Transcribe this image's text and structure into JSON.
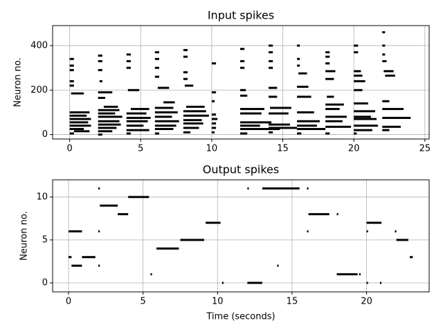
{
  "chart_data": [
    {
      "type": "raster",
      "title": "Input spikes",
      "y_label": "Neuron no.",
      "color": "#000000",
      "grid": true,
      "xlim": [
        -1.2,
        25.3
      ],
      "ylim": [
        -20,
        490
      ],
      "xticks": [
        0,
        5,
        10,
        15,
        20,
        25
      ],
      "yticks": [
        0,
        200,
        400
      ],
      "runs": [
        [
          0,
          0.3,
          340
        ],
        [
          0,
          0.3,
          310
        ],
        [
          0,
          0.3,
          290
        ],
        [
          0,
          0.3,
          240
        ],
        [
          0,
          0.3,
          220
        ],
        [
          0.1,
          1.0,
          185
        ],
        [
          0,
          1.4,
          100
        ],
        [
          0,
          1.2,
          85
        ],
        [
          0,
          1.5,
          70
        ],
        [
          0,
          1.3,
          55
        ],
        [
          0,
          1.5,
          40
        ],
        [
          0,
          1.0,
          25
        ],
        [
          0.3,
          1.4,
          15
        ],
        [
          0,
          0.3,
          5
        ],
        [
          2,
          2.3,
          355
        ],
        [
          2,
          2.3,
          330
        ],
        [
          2,
          2.3,
          290
        ],
        [
          2.1,
          2.3,
          240
        ],
        [
          2,
          3,
          190
        ],
        [
          2,
          2.5,
          165
        ],
        [
          2.4,
          3.4,
          125
        ],
        [
          2,
          3.5,
          110
        ],
        [
          2,
          3.2,
          95
        ],
        [
          2,
          3.7,
          80
        ],
        [
          2,
          3.5,
          60
        ],
        [
          2,
          3.6,
          45
        ],
        [
          2,
          3.3,
          30
        ],
        [
          2,
          3.0,
          15
        ],
        [
          2,
          2.3,
          0
        ],
        [
          4,
          4.3,
          360
        ],
        [
          4,
          4.3,
          330
        ],
        [
          4,
          4.3,
          300
        ],
        [
          4.1,
          4.9,
          200
        ],
        [
          4.3,
          5.6,
          115
        ],
        [
          4,
          5.4,
          95
        ],
        [
          4,
          5.7,
          75
        ],
        [
          4,
          5.5,
          60
        ],
        [
          4,
          5.2,
          40
        ],
        [
          4,
          5.6,
          20
        ],
        [
          4,
          4.3,
          5
        ],
        [
          6,
          6.3,
          370
        ],
        [
          6,
          6.3,
          340
        ],
        [
          6,
          6.3,
          300
        ],
        [
          6,
          6.3,
          260
        ],
        [
          6.2,
          7.0,
          210
        ],
        [
          6.6,
          7.4,
          145
        ],
        [
          6,
          7.3,
          120
        ],
        [
          6,
          7.6,
          100
        ],
        [
          6,
          7.2,
          80
        ],
        [
          6,
          7.7,
          60
        ],
        [
          6,
          7.5,
          40
        ],
        [
          6,
          7.3,
          25
        ],
        [
          6,
          6.3,
          5
        ],
        [
          8,
          8.3,
          380
        ],
        [
          8,
          8.3,
          350
        ],
        [
          8,
          8.3,
          280
        ],
        [
          8,
          8.3,
          250
        ],
        [
          8.1,
          8.7,
          220
        ],
        [
          8.2,
          9.5,
          125
        ],
        [
          8,
          9.6,
          105
        ],
        [
          8,
          9.8,
          85
        ],
        [
          8,
          9.3,
          65
        ],
        [
          8,
          9.4,
          50
        ],
        [
          8,
          9.1,
          30
        ],
        [
          8,
          8.5,
          10
        ],
        [
          10,
          10.3,
          320
        ],
        [
          10,
          10.3,
          190
        ],
        [
          10,
          10.2,
          150
        ],
        [
          10,
          10.3,
          90
        ],
        [
          10,
          10.4,
          70
        ],
        [
          10,
          10.3,
          50
        ],
        [
          10,
          10.3,
          30
        ],
        [
          10,
          10.2,
          10
        ],
        [
          12,
          12.3,
          385
        ],
        [
          12,
          12.3,
          330
        ],
        [
          12,
          12.3,
          300
        ],
        [
          12,
          12.4,
          200
        ],
        [
          12,
          12.5,
          175
        ],
        [
          12,
          13.7,
          115
        ],
        [
          12,
          13.5,
          95
        ],
        [
          12,
          14.2,
          55
        ],
        [
          12,
          13.4,
          40
        ],
        [
          12,
          14.8,
          25
        ],
        [
          12,
          12.5,
          5
        ],
        [
          14,
          14.3,
          400
        ],
        [
          14,
          14.3,
          370
        ],
        [
          14,
          14.3,
          330
        ],
        [
          14,
          14.3,
          300
        ],
        [
          14,
          14.6,
          210
        ],
        [
          14,
          14.6,
          170
        ],
        [
          14.1,
          15.6,
          120
        ],
        [
          14,
          15.4,
          95
        ],
        [
          14,
          16.0,
          30
        ],
        [
          14,
          15.5,
          45
        ],
        [
          14,
          14.3,
          10
        ],
        [
          16,
          16.2,
          400
        ],
        [
          16,
          16.2,
          340
        ],
        [
          16,
          16.2,
          310
        ],
        [
          16.1,
          16.7,
          275
        ],
        [
          16,
          16.8,
          215
        ],
        [
          16,
          17.0,
          170
        ],
        [
          16,
          17.2,
          100
        ],
        [
          16,
          17.6,
          60
        ],
        [
          16,
          17.4,
          40
        ],
        [
          16,
          18,
          25
        ],
        [
          16,
          16.3,
          5
        ],
        [
          18,
          18.3,
          370
        ],
        [
          18,
          18.3,
          350
        ],
        [
          18,
          18.3,
          320
        ],
        [
          18,
          18.7,
          285
        ],
        [
          18,
          18.6,
          250
        ],
        [
          18.1,
          18.6,
          170
        ],
        [
          18,
          19.3,
          135
        ],
        [
          18,
          19.0,
          115
        ],
        [
          18,
          19.5,
          80
        ],
        [
          18,
          19.2,
          60
        ],
        [
          18,
          19.8,
          35
        ],
        [
          18,
          18.3,
          5
        ],
        [
          20,
          20.3,
          400
        ],
        [
          20,
          20.3,
          370
        ],
        [
          20,
          20.5,
          285
        ],
        [
          20,
          20.6,
          265
        ],
        [
          20,
          20.8,
          240
        ],
        [
          20,
          20.6,
          200
        ],
        [
          20,
          21.0,
          140
        ],
        [
          20,
          21.5,
          105
        ],
        [
          20,
          21.2,
          80
        ],
        [
          20,
          21.6,
          70
        ],
        [
          20,
          21.7,
          40
        ],
        [
          20,
          21.3,
          20
        ],
        [
          20,
          20.2,
          5
        ],
        [
          22,
          22.2,
          460
        ],
        [
          22,
          22.2,
          400
        ],
        [
          22,
          22.2,
          360
        ],
        [
          22,
          22.3,
          330
        ],
        [
          22.1,
          22.8,
          285
        ],
        [
          22.2,
          22.9,
          265
        ],
        [
          22,
          22.5,
          150
        ],
        [
          22,
          23.5,
          115
        ],
        [
          22,
          24.0,
          75
        ],
        [
          22,
          23.3,
          35
        ],
        [
          22,
          22.5,
          20
        ]
      ]
    },
    {
      "type": "raster",
      "title": "Output spikes",
      "y_label": "Neuron no.",
      "x_label": "Time (seconds)",
      "color": "#000000",
      "grid": true,
      "xlim": [
        -1.07,
        24.2
      ],
      "ylim": [
        -1.05,
        12
      ],
      "xticks": [
        0,
        5,
        10,
        15,
        20
      ],
      "yticks": [
        0,
        5,
        10
      ],
      "runs": [
        [
          0,
          0.2,
          3
        ],
        [
          0,
          0.9,
          6
        ],
        [
          0.2,
          0.9,
          2
        ],
        [
          0.9,
          1.8,
          3
        ],
        [
          2,
          2.1,
          11
        ],
        [
          2,
          2.1,
          6
        ],
        [
          2,
          2.1,
          2
        ],
        [
          2.1,
          3.3,
          9
        ],
        [
          3.3,
          4.0,
          8
        ],
        [
          4,
          5.4,
          10
        ],
        [
          5.5,
          5.6,
          1
        ],
        [
          5.9,
          7.4,
          4
        ],
        [
          7.5,
          7.8,
          5
        ],
        [
          7.8,
          9.1,
          5
        ],
        [
          9.2,
          10.2,
          7
        ],
        [
          10.3,
          10.4,
          0
        ],
        [
          12,
          12.1,
          11
        ],
        [
          12,
          13.0,
          0
        ],
        [
          13,
          15.5,
          11
        ],
        [
          14,
          14.1,
          2
        ],
        [
          16,
          16.1,
          11
        ],
        [
          16,
          16.1,
          6
        ],
        [
          16.1,
          17.5,
          8
        ],
        [
          18,
          18.1,
          8
        ],
        [
          18,
          19.4,
          1
        ],
        [
          19.5,
          19.6,
          1
        ],
        [
          20,
          20.1,
          6
        ],
        [
          20,
          21,
          7
        ],
        [
          20,
          20.1,
          0
        ],
        [
          20.9,
          21,
          0
        ],
        [
          21.9,
          22,
          6
        ],
        [
          22,
          22.8,
          5
        ],
        [
          22.9,
          23.1,
          3
        ]
      ]
    }
  ]
}
